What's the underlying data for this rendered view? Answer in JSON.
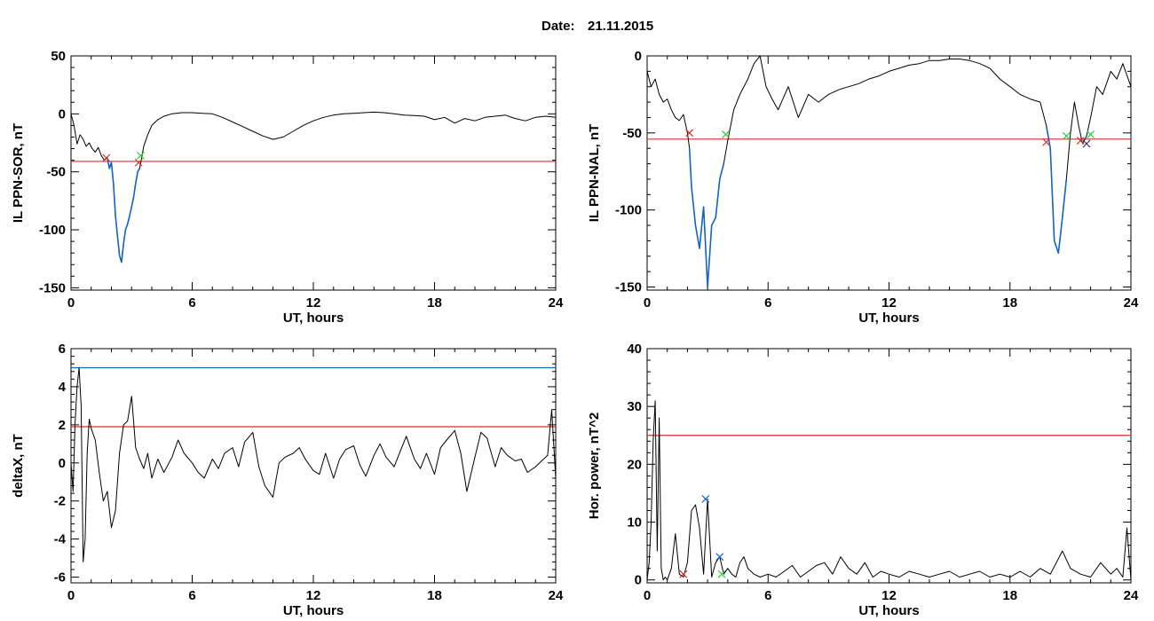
{
  "date_label": "Date:",
  "date_value": "21.11.2015",
  "colors": {
    "trace": "#000000",
    "highlight": "#1565c0",
    "threshold_red": "#d0312d",
    "threshold_blue": "#1565c0",
    "marker_red": "#d0312d",
    "marker_green": "#2ecc40",
    "marker_blue": "#1565c0",
    "marker_dark": "#3a2a6a"
  },
  "chart_data": [
    {
      "id": "sor",
      "type": "line",
      "title": "",
      "xlabel": "UT, hours",
      "ylabel": "IL PPN-SOR, nT",
      "xlim": [
        0,
        24
      ],
      "ylim": [
        -152,
        50
      ],
      "xticks": [
        0,
        6,
        12,
        18,
        24
      ],
      "yticks": [
        50,
        0,
        -50,
        -100,
        -150
      ],
      "series": [
        {
          "role": "trace",
          "x": [
            0,
            0.15,
            0.3,
            0.45,
            0.6,
            0.75,
            0.9,
            1.05,
            1.2,
            1.35,
            1.5,
            1.65,
            1.8,
            1.9,
            2.0,
            2.1,
            2.2,
            2.3,
            2.4,
            2.5,
            2.6,
            2.7,
            2.8,
            2.9,
            3.0,
            3.1,
            3.2,
            3.3,
            3.4,
            3.5,
            3.6,
            3.8,
            4.0,
            4.3,
            4.6,
            5.0,
            5.5,
            6.0,
            6.5,
            7.0,
            7.5,
            8.0,
            8.5,
            9.0,
            9.5,
            10.0,
            10.5,
            11.0,
            11.5,
            12.0,
            12.5,
            13.0,
            13.5,
            14.0,
            14.5,
            15.0,
            15.5,
            16.0,
            16.5,
            17.0,
            17.5,
            18.0,
            18.5,
            19.0,
            19.5,
            20.0,
            20.5,
            21.0,
            21.5,
            22.0,
            22.5,
            23.0,
            23.5,
            24.0
          ],
          "y": [
            0,
            -10,
            -26,
            -18,
            -22,
            -28,
            -25,
            -30,
            -33,
            -29,
            -36,
            -40,
            -38,
            -47,
            -42,
            -60,
            -88,
            -105,
            -122,
            -128,
            -112,
            -100,
            -95,
            -88,
            -80,
            -72,
            -60,
            -50,
            -47,
            -38,
            -28,
            -18,
            -10,
            -5,
            -2,
            0,
            1,
            1,
            0.5,
            0,
            -3,
            -7,
            -11,
            -15,
            -19,
            -22,
            -20,
            -15,
            -10,
            -6,
            -3,
            -1,
            0,
            0.5,
            1,
            1.5,
            1,
            0,
            -1,
            -1.5,
            -2,
            -5,
            -3,
            -8,
            -4,
            -6,
            -3,
            -2,
            -1,
            -4,
            -6,
            -3,
            -2,
            -3
          ]
        },
        {
          "role": "highlight",
          "x": [
            1.8,
            1.9,
            2.0,
            2.1,
            2.2,
            2.3,
            2.4,
            2.5,
            2.6,
            2.7,
            2.8,
            2.9,
            3.0,
            3.1,
            3.2,
            3.3,
            3.4
          ],
          "y": [
            -38,
            -47,
            -42,
            -60,
            -88,
            -105,
            -122,
            -128,
            -112,
            -100,
            -95,
            -88,
            -80,
            -72,
            -60,
            -50,
            -47
          ]
        }
      ],
      "thresholds": [
        {
          "y": -41,
          "color": "threshold_red"
        }
      ],
      "markers": [
        {
          "x": 1.75,
          "y": -38,
          "color": "marker_red"
        },
        {
          "x": 3.35,
          "y": -42,
          "color": "marker_red"
        },
        {
          "x": 3.45,
          "y": -36,
          "color": "marker_green"
        }
      ]
    },
    {
      "id": "nal",
      "type": "line",
      "title": "",
      "xlabel": "UT, hours",
      "ylabel": "IL PPN-NAL, nT",
      "xlim": [
        0,
        24
      ],
      "ylim": [
        -152,
        0
      ],
      "xticks": [
        0,
        6,
        12,
        18,
        24
      ],
      "yticks": [
        0,
        -50,
        -100,
        -150
      ],
      "series": [
        {
          "role": "trace",
          "x": [
            0,
            0.2,
            0.4,
            0.6,
            0.8,
            1.0,
            1.2,
            1.4,
            1.6,
            1.8,
            2.0,
            2.1,
            2.2,
            2.4,
            2.6,
            2.8,
            3.0,
            3.2,
            3.4,
            3.6,
            3.8,
            4.0,
            4.3,
            4.6,
            5.0,
            5.3,
            5.6,
            5.9,
            6.2,
            6.5,
            7.0,
            7.5,
            8.0,
            8.5,
            9.0,
            9.5,
            10.0,
            10.5,
            11.0,
            11.5,
            12.0,
            12.5,
            13.0,
            13.5,
            14.0,
            14.5,
            15.0,
            15.5,
            16.0,
            16.5,
            17.0,
            17.5,
            18.0,
            18.5,
            19.0,
            19.5,
            19.8,
            20.0,
            20.2,
            20.4,
            20.6,
            20.8,
            21.0,
            21.2,
            21.4,
            21.6,
            21.8,
            22.0,
            22.3,
            22.6,
            23.0,
            23.3,
            23.6,
            24.0
          ],
          "y": [
            -10,
            -20,
            -15,
            -25,
            -30,
            -28,
            -35,
            -40,
            -42,
            -38,
            -50,
            -60,
            -85,
            -110,
            -125,
            -98,
            -150,
            -110,
            -105,
            -80,
            -70,
            -55,
            -35,
            -25,
            -15,
            -5,
            0,
            -20,
            -28,
            -35,
            -20,
            -40,
            -25,
            -30,
            -25,
            -22,
            -20,
            -18,
            -15,
            -13,
            -10,
            -8,
            -6,
            -5,
            -3,
            -3,
            -2,
            -2,
            -3,
            -5,
            -8,
            -15,
            -20,
            -25,
            -28,
            -30,
            -45,
            -60,
            -120,
            -128,
            -105,
            -80,
            -50,
            -30,
            -45,
            -57,
            -52,
            -40,
            -20,
            -25,
            -10,
            -15,
            -5,
            -20
          ]
        },
        {
          "role": "highlight",
          "x": [
            2.1,
            2.2,
            2.4,
            2.6,
            2.8,
            3.0,
            3.2,
            3.4,
            3.6,
            3.8
          ],
          "y": [
            -60,
            -85,
            -110,
            -125,
            -98,
            -150,
            -110,
            -105,
            -80,
            -70
          ]
        },
        {
          "role": "highlight",
          "x": [
            19.8,
            20.0,
            20.2,
            20.4,
            20.6,
            20.8
          ],
          "y": [
            -45,
            -60,
            -120,
            -128,
            -105,
            -80
          ]
        }
      ],
      "thresholds": [
        {
          "y": -54,
          "color": "threshold_red"
        }
      ],
      "markers": [
        {
          "x": 2.1,
          "y": -50,
          "color": "marker_red"
        },
        {
          "x": 3.9,
          "y": -51,
          "color": "marker_green"
        },
        {
          "x": 19.8,
          "y": -56,
          "color": "marker_red"
        },
        {
          "x": 20.8,
          "y": -52,
          "color": "marker_green"
        },
        {
          "x": 21.5,
          "y": -55,
          "color": "marker_red"
        },
        {
          "x": 21.8,
          "y": -57,
          "color": "marker_dark"
        },
        {
          "x": 22.0,
          "y": -51,
          "color": "marker_green"
        }
      ]
    },
    {
      "id": "deltax",
      "type": "line",
      "title": "",
      "xlabel": "UT, hours",
      "ylabel": "deltaX, nT",
      "xlim": [
        0,
        24
      ],
      "ylim": [
        -6.3,
        6
      ],
      "xticks": [
        0,
        6,
        12,
        18,
        24
      ],
      "yticks": [
        6,
        4,
        2,
        0,
        -2,
        -4,
        -6
      ],
      "series": [
        {
          "role": "trace",
          "x": [
            0,
            0.1,
            0.2,
            0.3,
            0.4,
            0.5,
            0.6,
            0.7,
            0.8,
            0.9,
            1.0,
            1.2,
            1.4,
            1.6,
            1.8,
            2.0,
            2.2,
            2.4,
            2.6,
            2.8,
            3.0,
            3.2,
            3.4,
            3.6,
            3.8,
            4.0,
            4.3,
            4.6,
            5.0,
            5.3,
            5.6,
            6.0,
            6.3,
            6.6,
            7.0,
            7.3,
            7.6,
            8.0,
            8.3,
            8.6,
            9.0,
            9.3,
            9.6,
            10.0,
            10.3,
            10.6,
            11.0,
            11.3,
            11.6,
            12.0,
            12.3,
            12.6,
            13.0,
            13.3,
            13.6,
            14.0,
            14.3,
            14.6,
            15.0,
            15.3,
            15.6,
            16.0,
            16.3,
            16.6,
            17.0,
            17.3,
            17.6,
            18.0,
            18.3,
            18.6,
            19.0,
            19.3,
            19.6,
            20.0,
            20.3,
            20.6,
            21.0,
            21.3,
            21.6,
            22.0,
            22.3,
            22.6,
            23.0,
            23.3,
            23.6,
            23.8,
            24.0
          ],
          "y": [
            0,
            -1.5,
            2,
            4,
            5,
            3,
            -5.2,
            -4,
            0.5,
            2.3,
            1.8,
            1.2,
            -0.5,
            -2,
            -1.5,
            -3.4,
            -2.5,
            0.5,
            2,
            2.2,
            3.5,
            0.8,
            0.2,
            -0.3,
            0.5,
            -0.8,
            0.2,
            -0.5,
            0.3,
            1.2,
            0.5,
            0,
            -0.5,
            -0.8,
            0.2,
            -0.3,
            0.5,
            0.8,
            -0.2,
            1.1,
            1.6,
            -0.2,
            -1.2,
            -1.8,
            0,
            0.3,
            0.5,
            0.8,
            0.2,
            -0.4,
            -0.6,
            0.5,
            -0.8,
            0.2,
            0.7,
            0.9,
            -0.1,
            -0.7,
            0.4,
            1.0,
            0.3,
            -0.2,
            0.6,
            1.4,
            0.2,
            -0.3,
            0.5,
            -0.6,
            0.8,
            1.2,
            1.7,
            0.5,
            -1.5,
            0.3,
            1.6,
            1.3,
            -0.2,
            0.8,
            0.4,
            0.1,
            0.2,
            -0.5,
            -0.2,
            0.1,
            0.4,
            2.8,
            -0.8
          ]
        }
      ],
      "thresholds": [
        {
          "y": 5.0,
          "color": "threshold_blue"
        },
        {
          "y": 1.9,
          "color": "threshold_red"
        }
      ],
      "markers": []
    },
    {
      "id": "power",
      "type": "line",
      "title": "",
      "xlabel": "UT, hours",
      "ylabel": "Hor. power, nT^2",
      "xlim": [
        0,
        24
      ],
      "ylim": [
        -0.5,
        40
      ],
      "xticks": [
        0,
        6,
        12,
        18,
        24
      ],
      "yticks": [
        40,
        30,
        20,
        10,
        0
      ],
      "series": [
        {
          "role": "trace",
          "x": [
            0,
            0.1,
            0.2,
            0.3,
            0.4,
            0.5,
            0.6,
            0.7,
            0.8,
            0.9,
            1.0,
            1.2,
            1.4,
            1.6,
            1.8,
            2.0,
            2.2,
            2.4,
            2.6,
            2.8,
            3.0,
            3.2,
            3.4,
            3.6,
            3.8,
            4.0,
            4.2,
            4.4,
            4.6,
            4.8,
            5.0,
            5.3,
            5.6,
            6.0,
            6.4,
            6.8,
            7.2,
            7.6,
            8.0,
            8.4,
            8.8,
            9.2,
            9.6,
            10.0,
            10.4,
            10.8,
            11.2,
            11.6,
            12.0,
            12.5,
            13.0,
            13.5,
            14.0,
            14.5,
            15.0,
            15.5,
            16.0,
            16.5,
            17.0,
            17.5,
            18.0,
            18.5,
            19.0,
            19.5,
            20.0,
            20.3,
            20.6,
            21.0,
            21.5,
            22.0,
            22.5,
            23.0,
            23.3,
            23.6,
            23.8,
            24.0
          ],
          "y": [
            0,
            3,
            10,
            24,
            31,
            5,
            28,
            2,
            0,
            0.5,
            0,
            2,
            8,
            1,
            0.5,
            3,
            12,
            13,
            9,
            1,
            14,
            0.5,
            3,
            4,
            1,
            2,
            1,
            0.5,
            3,
            4,
            2,
            1,
            0.5,
            1,
            0.5,
            1.5,
            2.5,
            0.5,
            1.5,
            2.5,
            3,
            1,
            4,
            2,
            1,
            3,
            0.5,
            1.5,
            1,
            0.5,
            1.5,
            1,
            0.5,
            1,
            1.5,
            0.5,
            1,
            1.5,
            0.5,
            1,
            0.5,
            1.5,
            0.5,
            2,
            1,
            3,
            5,
            2,
            1,
            0.5,
            3,
            1,
            2,
            0.5,
            9,
            0
          ]
        }
      ],
      "thresholds": [
        {
          "y": 25,
          "color": "threshold_red"
        }
      ],
      "markers": [
        {
          "x": 1.8,
          "y": 1,
          "color": "marker_red"
        },
        {
          "x": 2.9,
          "y": 14,
          "color": "marker_blue"
        },
        {
          "x": 3.6,
          "y": 4,
          "color": "marker_blue"
        },
        {
          "x": 3.7,
          "y": 1,
          "color": "marker_green"
        }
      ]
    }
  ]
}
